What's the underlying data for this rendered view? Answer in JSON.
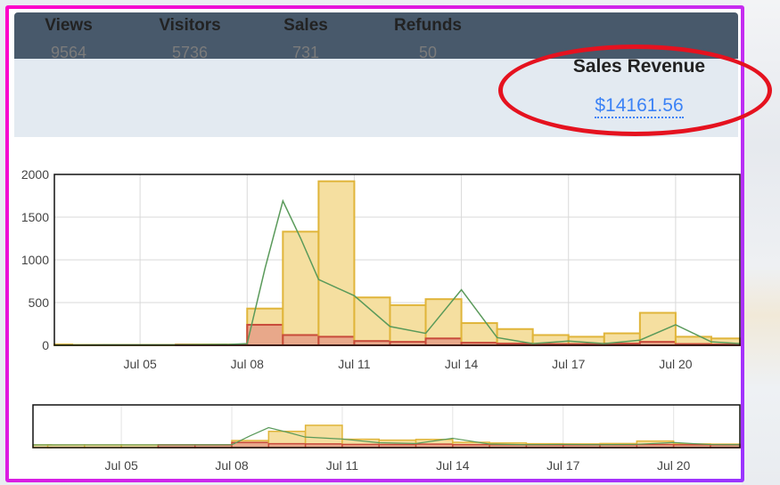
{
  "stats": {
    "items": [
      {
        "label": "Views",
        "value": "9564"
      },
      {
        "label": "Visitors",
        "value": "5736"
      },
      {
        "label": "Sales",
        "value": "731"
      },
      {
        "label": "Refunds",
        "value": "50"
      }
    ],
    "revenue_label": "Sales Revenue",
    "revenue_value": "$14161.56"
  },
  "colors": {
    "accent": "#3b82f6",
    "highlight": "#e5121f",
    "bar_fill": "#f5dfa0",
    "bar_stroke": "#e0b53a",
    "refund_fill": "#e8a88a",
    "refund_stroke": "#c84a3a",
    "line": "#5a9a5a"
  },
  "chart_data": {
    "type": "bar",
    "y_ticks": [
      "0",
      "500",
      "1000",
      "1500",
      "2000"
    ],
    "ylim": [
      0,
      2000
    ],
    "x_tick_labels": [
      "Jul 05",
      "Jul 08",
      "Jul 11",
      "Jul 14",
      "Jul 17",
      "Jul 20"
    ],
    "x_tick_days": [
      5,
      8,
      11,
      14,
      17,
      20
    ],
    "x_range_days": [
      2.6,
      21.8
    ],
    "days": [
      2.6,
      3.5,
      4.5,
      5.5,
      6.5,
      7.5,
      8.5,
      9.5,
      10.5,
      11.5,
      12.5,
      13.5,
      14.5,
      15.5,
      16.5,
      17.5,
      18.5,
      19.5,
      20.5,
      21.5
    ],
    "series": [
      {
        "name": "Sales",
        "type": "bar",
        "values": [
          10,
          5,
          5,
          5,
          10,
          10,
          430,
          1330,
          1920,
          560,
          470,
          540,
          260,
          190,
          120,
          100,
          140,
          380,
          100,
          80
        ]
      },
      {
        "name": "Refunds",
        "type": "bar",
        "values": [
          0,
          0,
          0,
          0,
          5,
          5,
          240,
          120,
          100,
          50,
          40,
          80,
          30,
          20,
          15,
          15,
          20,
          40,
          15,
          10
        ]
      },
      {
        "name": "Visitors",
        "type": "line",
        "x": [
          2.6,
          4,
          6,
          7.5,
          8,
          8.5,
          9,
          9.5,
          10,
          11,
          12,
          13,
          14,
          15,
          16,
          17,
          18,
          19,
          20,
          21,
          21.8
        ],
        "values": [
          0,
          5,
          5,
          10,
          20,
          900,
          1690,
          1250,
          770,
          580,
          220,
          140,
          650,
          90,
          20,
          50,
          20,
          60,
          240,
          40,
          20
        ]
      }
    ]
  }
}
